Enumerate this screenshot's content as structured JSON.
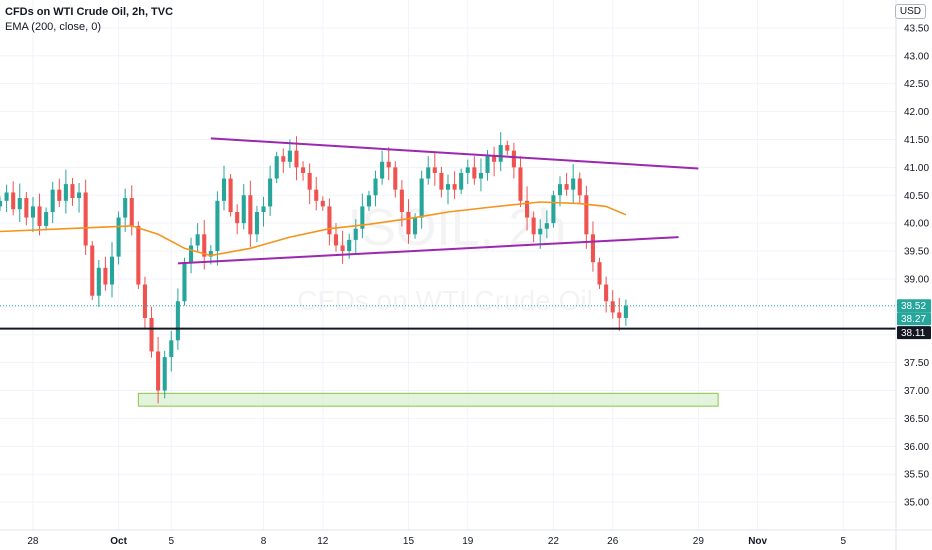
{
  "legend": {
    "title": "CFDs on WTI Crude Oil, 2h, TVC",
    "indicator": "EMA (200, close, 0)"
  },
  "currency": "USD",
  "watermark": {
    "symbol": "USOIL, 2h",
    "name": "CFDs on WTI Crude Oil"
  },
  "colors": {
    "up": "#26a69a",
    "down": "#ef5350",
    "ema": "#f7931a",
    "trendline": "#9c27b0",
    "support": "#131722",
    "zone_fill": "#d7efcf",
    "zone_border": "#8bc34a",
    "price_label": "#26a69a"
  },
  "price_labels": [
    {
      "value": 38.52,
      "text": "38.52",
      "style": "last-price"
    },
    {
      "value": 38.27,
      "text": "38.27",
      "style": "last-price"
    },
    {
      "value": 38.11,
      "text": "38.11",
      "style": "level"
    }
  ],
  "chart_data": {
    "type": "candlestick",
    "title": "CFDs on WTI Crude Oil, 2h, TVC",
    "ylim": [
      34.5,
      44.0
    ],
    "y_ticks": [
      "34.50",
      "35.00",
      "35.50",
      "36.00",
      "36.50",
      "37.00",
      "37.50",
      "38.00",
      "38.50",
      "39.00",
      "39.50",
      "40.00",
      "40.50",
      "41.00",
      "41.50",
      "42.00",
      "42.50",
      "43.00",
      "43.50",
      "44.00"
    ],
    "x_ticks": [
      {
        "label": "28",
        "bar": 5
      },
      {
        "label": "Oct",
        "bar": 18
      },
      {
        "label": "5",
        "bar": 26
      },
      {
        "label": "8",
        "bar": 40
      },
      {
        "label": "12",
        "bar": 49
      },
      {
        "label": "15",
        "bar": 62
      },
      {
        "label": "19",
        "bar": 71
      },
      {
        "label": "22",
        "bar": 84
      },
      {
        "label": "26",
        "bar": 93
      },
      {
        "label": "29",
        "bar": 106
      },
      {
        "label": "Nov",
        "bar": 115
      },
      {
        "label": "5",
        "bar": 128
      }
    ],
    "bar_range": [
      0,
      136
    ],
    "closes": [
      40.4,
      40.55,
      40.25,
      40.45,
      40.1,
      40.3,
      39.95,
      40.2,
      40.6,
      40.4,
      40.7,
      40.45,
      40.55,
      39.6,
      38.7,
      39.2,
      38.9,
      39.4,
      40.1,
      40.45,
      39.95,
      38.9,
      38.3,
      37.7,
      37.0,
      37.6,
      37.9,
      38.6,
      39.3,
      39.6,
      39.8,
      39.4,
      39.5,
      40.4,
      40.8,
      40.2,
      40.0,
      40.5,
      39.8,
      40.2,
      40.3,
      40.8,
      41.2,
      41.1,
      41.3,
      41.0,
      40.9,
      40.6,
      40.4,
      40.3,
      39.8,
      39.6,
      39.5,
      39.7,
      39.9,
      40.3,
      40.5,
      40.8,
      41.1,
      41.0,
      40.6,
      40.2,
      39.8,
      40.1,
      40.8,
      41.0,
      40.9,
      40.6,
      40.7,
      40.6,
      40.9,
      41.0,
      40.8,
      40.9,
      41.2,
      41.1,
      41.4,
      41.3,
      41.0,
      40.4,
      40.1,
      39.8,
      39.9,
      40.0,
      40.5,
      40.7,
      40.6,
      40.8,
      40.5,
      39.8,
      39.3,
      38.9,
      38.6,
      38.4,
      38.3,
      38.52
    ],
    "series": [
      {
        "name": "EMA (200, close, 0)",
        "points": [
          [
            0,
            39.85
          ],
          [
            10,
            39.9
          ],
          [
            20,
            39.95
          ],
          [
            24,
            39.8
          ],
          [
            28,
            39.55
          ],
          [
            32,
            39.42
          ],
          [
            38,
            39.55
          ],
          [
            44,
            39.75
          ],
          [
            50,
            39.9
          ],
          [
            56,
            39.98
          ],
          [
            62,
            40.08
          ],
          [
            68,
            40.2
          ],
          [
            74,
            40.28
          ],
          [
            78,
            40.33
          ],
          [
            82,
            40.38
          ],
          [
            88,
            40.35
          ],
          [
            92,
            40.3
          ],
          [
            95,
            40.15
          ]
        ]
      }
    ],
    "annotations": {
      "trendlines": [
        {
          "from": [
            32,
            41.52
          ],
          "to": [
            106,
            40.98
          ]
        },
        {
          "from": [
            27,
            39.28
          ],
          "to": [
            103,
            39.75
          ]
        }
      ],
      "horizontal_line": {
        "value": 38.11
      },
      "zone": {
        "from_bar": 21,
        "to_bar": 109,
        "top": 36.95,
        "bottom": 36.72
      }
    }
  }
}
